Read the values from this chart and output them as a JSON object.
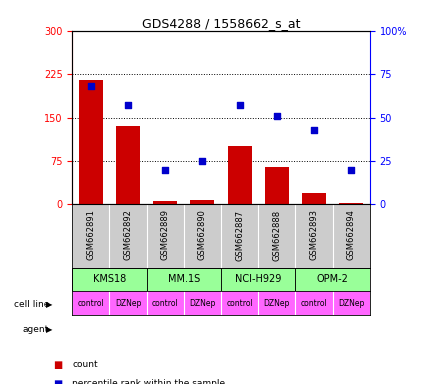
{
  "title": "GDS4288 / 1558662_s_at",
  "samples": [
    "GSM662891",
    "GSM662892",
    "GSM662889",
    "GSM662890",
    "GSM662887",
    "GSM662888",
    "GSM662893",
    "GSM662894"
  ],
  "counts": [
    215,
    135,
    5,
    8,
    100,
    65,
    20,
    3
  ],
  "percentile_ranks": [
    68,
    57,
    20,
    25,
    57,
    51,
    43,
    20
  ],
  "left_ylim": [
    0,
    300
  ],
  "right_ylim": [
    0,
    100
  ],
  "left_yticks": [
    0,
    75,
    150,
    225,
    300
  ],
  "right_yticks": [
    0,
    25,
    50,
    75,
    100
  ],
  "right_yticklabels": [
    "0",
    "25",
    "50",
    "75",
    "100%"
  ],
  "bar_color": "#cc0000",
  "dot_color": "#0000cc",
  "cell_lines": [
    "KMS18",
    "MM.1S",
    "NCI-H929",
    "OPM-2"
  ],
  "cell_line_spans": [
    [
      0,
      2
    ],
    [
      2,
      4
    ],
    [
      4,
      6
    ],
    [
      6,
      8
    ]
  ],
  "cell_line_color": "#99ff99",
  "agent_labels": [
    "control",
    "DZNep",
    "control",
    "DZNep",
    "control",
    "DZNep",
    "control",
    "DZNep"
  ],
  "agent_color": "#ff66ff",
  "header_color": "#cccccc",
  "legend_count_label": "count",
  "legend_pct_label": "percentile rank within the sample",
  "gridline_yticks": [
    75,
    150,
    225
  ]
}
